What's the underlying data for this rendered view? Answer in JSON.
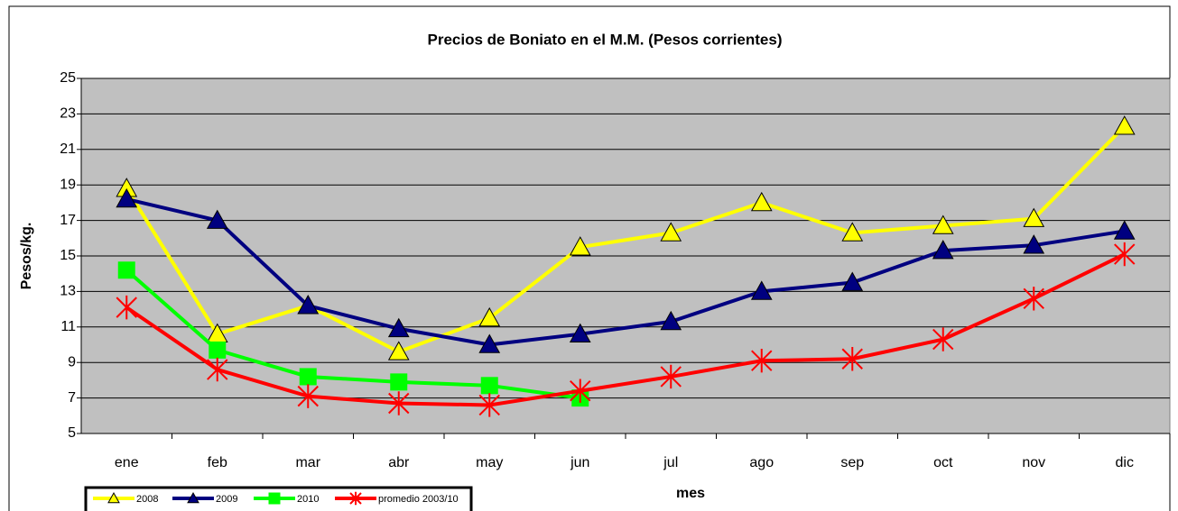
{
  "chart_data": {
    "type": "line",
    "title": "Precios de Boniato en el M.M. (Pesos corrientes)",
    "x_label": "mes",
    "y_label": "Pesos/kg.",
    "categories": [
      "ene",
      "feb",
      "mar",
      "abr",
      "may",
      "jun",
      "jul",
      "ago",
      "sep",
      "oct",
      "nov",
      "dic"
    ],
    "series": [
      {
        "name": "2008",
        "color": "#ffff00",
        "marker": "triangle",
        "values": [
          18.8,
          10.6,
          12.2,
          9.6,
          11.5,
          15.5,
          16.3,
          18.0,
          16.3,
          16.7,
          17.1,
          22.3
        ]
      },
      {
        "name": "2009",
        "color": "#000080",
        "marker": "triangle",
        "values": [
          18.2,
          17.0,
          12.2,
          10.9,
          10.0,
          10.6,
          11.3,
          13.0,
          13.5,
          15.3,
          15.6,
          16.4
        ]
      },
      {
        "name": "2010",
        "color": "#00ff00",
        "marker": "square",
        "values": [
          14.2,
          9.7,
          8.2,
          7.9,
          7.7,
          7.0,
          null,
          null,
          null,
          null,
          null,
          null
        ]
      },
      {
        "name": "promedio 2003/10",
        "color": "#ff0000",
        "marker": "star",
        "values": [
          12.1,
          8.6,
          7.1,
          6.7,
          6.6,
          7.4,
          8.2,
          9.1,
          9.2,
          10.3,
          12.6,
          15.1
        ]
      }
    ],
    "ylim": [
      5,
      25
    ],
    "yticks": [
      5,
      7,
      9,
      11,
      13,
      15,
      17,
      19,
      21,
      23,
      25
    ],
    "grid": true,
    "plot_background": "#c0c0c0",
    "legend": "bottom-left"
  }
}
